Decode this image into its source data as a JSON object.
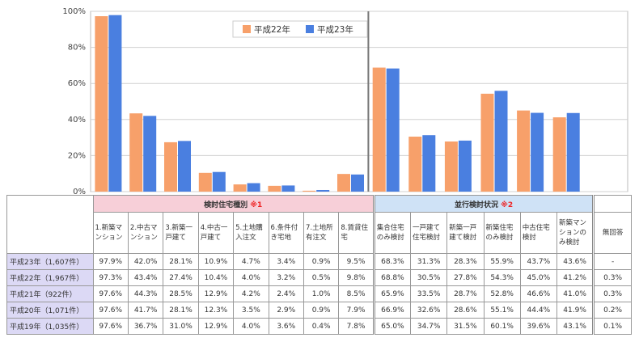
{
  "chart_data": {
    "type": "bar",
    "yticks": [
      "100%",
      "80%",
      "60%",
      "40%",
      "20%",
      "0%"
    ],
    "ylim": [
      0,
      100
    ],
    "legend_position": "top-center",
    "series": [
      {
        "name": "平成22年",
        "color": "#f7a06a",
        "values": [
          97.3,
          43.4,
          27.4,
          10.4,
          4.0,
          3.2,
          0.5,
          9.8,
          68.8,
          30.5,
          27.8,
          54.3,
          45.0,
          41.2
        ]
      },
      {
        "name": "平成23年",
        "color": "#4a7fe0",
        "values": [
          97.9,
          42.0,
          28.1,
          10.9,
          4.7,
          3.4,
          0.9,
          9.5,
          68.3,
          31.3,
          28.3,
          55.9,
          43.7,
          43.6
        ]
      }
    ]
  },
  "table": {
    "group_a": {
      "label": "検討住宅種別",
      "note": "※1"
    },
    "group_b": {
      "label": "並行検討状況",
      "note": "※2"
    },
    "no_answer_header": "無回答",
    "columns": [
      "1.新築マンション",
      "2.中古マンション",
      "3.新築一戸建て",
      "4.中古一戸建て",
      "5.土地購入注文",
      "6.条件付き宅地",
      "7.土地所有注文",
      "8.賃貸住宅",
      "集合住宅のみ検討",
      "一戸建て住宅検討",
      "新築一戸建て検討",
      "新築住宅のみ検討",
      "中古住宅検討",
      "新築マンションのみ検討"
    ],
    "rows": [
      {
        "label": "平成23年（1,607件）",
        "values": [
          "97.9%",
          "42.0%",
          "28.1%",
          "10.9%",
          "4.7%",
          "3.4%",
          "0.9%",
          "9.5%",
          "68.3%",
          "31.3%",
          "28.3%",
          "55.9%",
          "43.7%",
          "43.6%"
        ],
        "no_answer": "-"
      },
      {
        "label": "平成22年（1,967件）",
        "values": [
          "97.3%",
          "43.4%",
          "27.4%",
          "10.4%",
          "4.0%",
          "3.2%",
          "0.5%",
          "9.8%",
          "68.8%",
          "30.5%",
          "27.8%",
          "54.3%",
          "45.0%",
          "41.2%"
        ],
        "no_answer": "0.3%"
      },
      {
        "label": "平成21年（922件）",
        "values": [
          "97.6%",
          "44.3%",
          "28.5%",
          "12.9%",
          "4.2%",
          "2.4%",
          "1.0%",
          "8.5%",
          "65.9%",
          "33.5%",
          "28.7%",
          "52.8%",
          "46.6%",
          "41.0%"
        ],
        "no_answer": "0.3%"
      },
      {
        "label": "平成20年（1,071件）",
        "values": [
          "97.6%",
          "41.7%",
          "28.1%",
          "12.3%",
          "3.5%",
          "2.9%",
          "0.9%",
          "7.9%",
          "66.9%",
          "32.6%",
          "28.6%",
          "55.1%",
          "44.4%",
          "41.9%"
        ],
        "no_answer": "0.2%"
      },
      {
        "label": "平成19年（1,035件）",
        "values": [
          "97.6%",
          "36.7%",
          "31.0%",
          "12.9%",
          "4.0%",
          "3.6%",
          "0.4%",
          "7.8%",
          "65.0%",
          "34.7%",
          "31.5%",
          "60.1%",
          "39.6%",
          "43.1%"
        ],
        "no_answer": "0.1%"
      }
    ]
  }
}
